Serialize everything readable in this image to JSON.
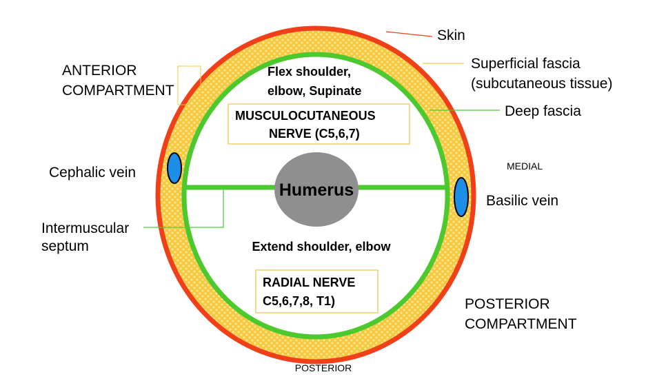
{
  "labels": {
    "skin": "Skin",
    "superficial_fascia_line1": "Superficial fascia",
    "superficial_fascia_line2": "(subcutaneous tissue)",
    "deep_fascia": "Deep fascia",
    "anterior_line1": "ANTERIOR",
    "anterior_line2": "COMPARTMENT",
    "cephalic_vein": "Cephalic vein",
    "intermuscular_line1": "Intermuscular",
    "intermuscular_line2": "septum",
    "medial": "MEDIAL",
    "basilic_vein": "Basilic vein",
    "posterior_compartment_line1": "POSTERIOR",
    "posterior_compartment_line2": "COMPARTMENT",
    "posterior": "POSTERIOR",
    "humerus": "Humerus"
  },
  "anterior_action": {
    "line1": "Flex shoulder,",
    "line2": "elbow, Supinate"
  },
  "anterior_nerve": {
    "line1": "MUSCULOCUTANEOUS",
    "line2": "NERVE (C5,6,7)"
  },
  "posterior_action": {
    "line1": "Extend shoulder, elbow"
  },
  "posterior_nerve": {
    "line1": "RADIAL NERVE",
    "line2": "C5,6,7,8, T1)"
  },
  "colors": {
    "skin": "#f0401a",
    "superficial_fascia": "#f6c93c",
    "fascia_dots": "#fbe79a",
    "deep_fascia": "#4bc92e",
    "humerus": "#8f8f8f",
    "vein": "#1d8ee6",
    "nerve_box_border": "#e8c24a"
  }
}
